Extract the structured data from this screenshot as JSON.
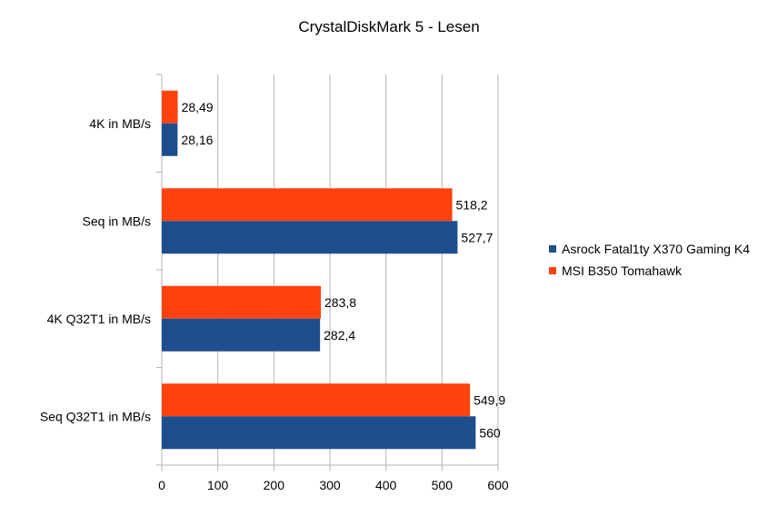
{
  "chart_data": {
    "type": "bar",
    "orientation": "horizontal",
    "title": "CrystalDiskMark 5 - Lesen",
    "categories": [
      "4K in MB/s",
      "Seq in MB/s",
      "4K Q32T1 in MB/s",
      "Seq Q32T1 in MB/s"
    ],
    "series": [
      {
        "name": "Asrock Fatal1ty X370 Gaming K4",
        "color": "#1f4e8c",
        "values": [
          28.16,
          527.7,
          282.4,
          560
        ],
        "labels": [
          "28,16",
          "527,7",
          "282,4",
          "560"
        ]
      },
      {
        "name": "MSI B350 Tomahawk",
        "color": "#ff420e",
        "values": [
          28.49,
          518.2,
          283.8,
          549.9
        ],
        "labels": [
          "28,49",
          "518,2",
          "283,8",
          "549,9"
        ]
      }
    ],
    "xlim": [
      0,
      600
    ],
    "xticks": [
      0,
      100,
      200,
      300,
      400,
      500,
      600
    ],
    "xlabel": "",
    "ylabel": "",
    "grid": true,
    "legend_position": "right"
  }
}
